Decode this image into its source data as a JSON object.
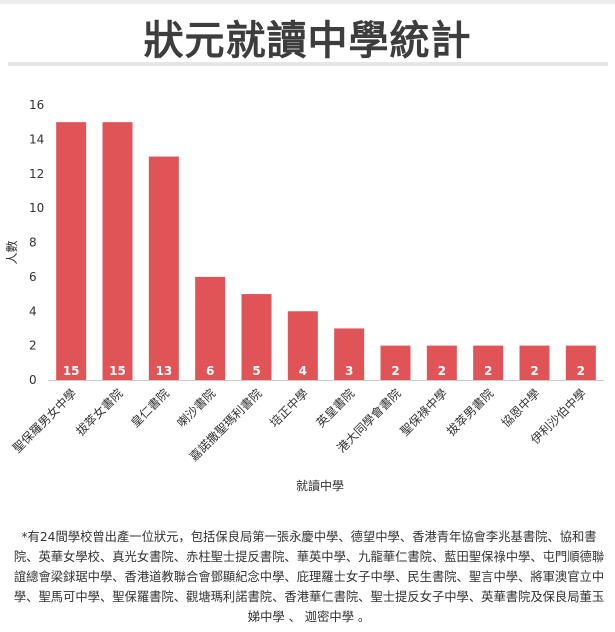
{
  "title": "狀元就讀中學統計",
  "chart_data": {
    "type": "bar",
    "xlabel": "就讀中學",
    "ylabel": "人數",
    "ylim": [
      0,
      16
    ],
    "yticks": [
      0,
      2,
      4,
      6,
      8,
      10,
      12,
      14,
      16
    ],
    "categories": [
      "聖保羅男女中學",
      "拔萃女書院",
      "皇仁書院",
      "喇沙書院",
      "嘉諾撒聖瑪利書院",
      "培正中學",
      "英皇書院",
      "港大同學會書院",
      "聖保祿中學",
      "拔萃男書院",
      "協恩中學",
      "伊利沙伯中學"
    ],
    "values": [
      15,
      15,
      13,
      6,
      5,
      4,
      3,
      2,
      2,
      2,
      2,
      2
    ],
    "bar_color": "#e05458",
    "grid": false
  },
  "footnote": "*有24間學校曾出產一位狀元，包括保良局第一張永慶中學、德望中學、香港青年協會李兆基書院、協和書院、英華女學校、真光女書院、赤柱聖士提反書院、華英中學、九龍華仁書院、藍田聖保祿中學、屯門順德聯誼總會梁銶琚中學、香港道教聯合會鄧顯紀念中學、庇理羅士女子中學、民生書院、聖言中學、將軍澳官立中學、聖馬可中學、聖保羅書院、觀塘瑪利諾書院、香港華仁書院、聖士提反女子中學、英華書院及保良局董玉娣中學 、 迦密中學 。"
}
